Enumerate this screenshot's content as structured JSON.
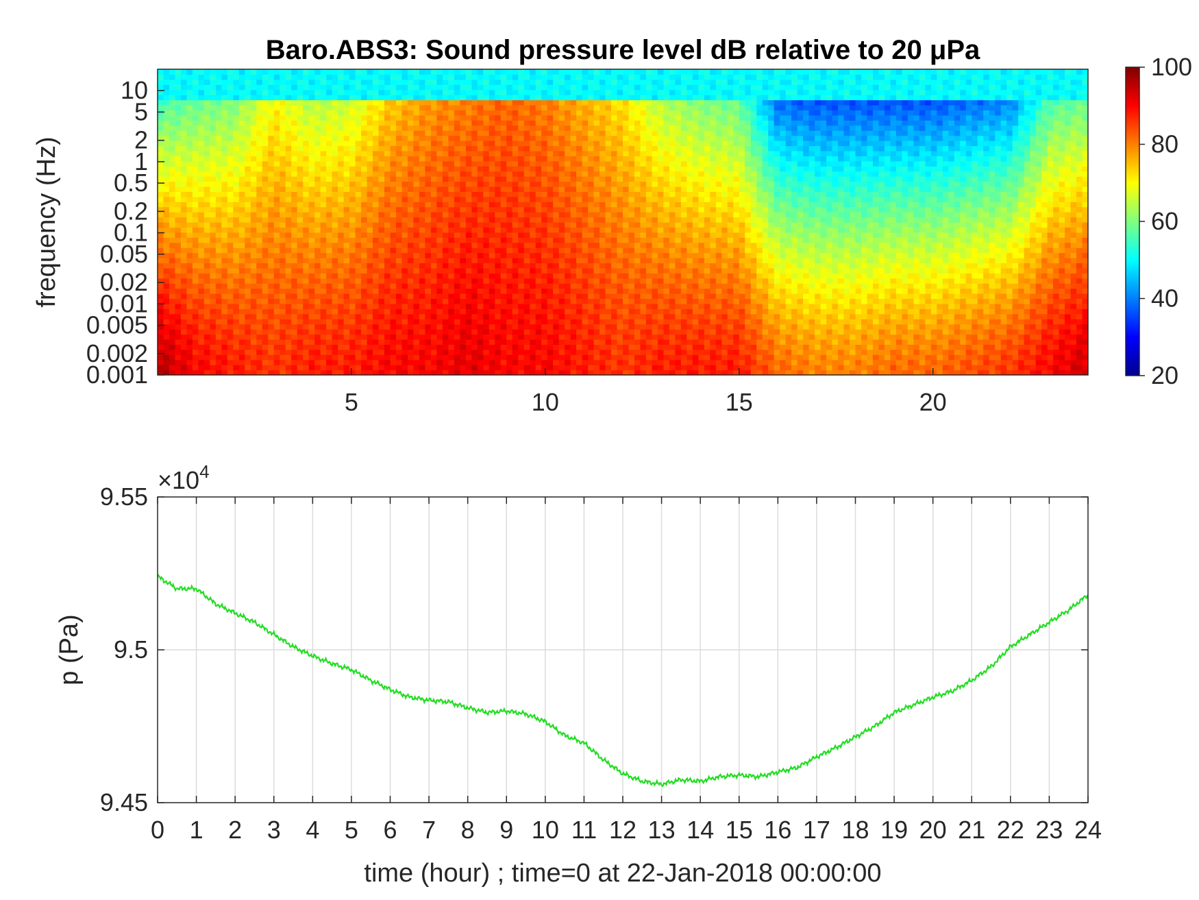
{
  "chart_data": [
    {
      "type": "heatmap",
      "title": "Baro.ABS3: Sound pressure level dB relative to 20 μPa",
      "ylabel": "frequency (Hz)",
      "xlabel": "",
      "xlim": [
        0,
        24
      ],
      "ylim": [
        0.001,
        20
      ],
      "yscale": "log",
      "xticks": [
        5,
        10,
        15,
        20
      ],
      "yticks": [
        0.001,
        0.002,
        0.005,
        0.01,
        0.02,
        0.05,
        0.1,
        0.2,
        0.5,
        1,
        2,
        5,
        10
      ],
      "ytick_labels": [
        "0.001",
        "0.002",
        "0.005",
        "0.01",
        "0.02",
        "0.05",
        "0.1",
        "0.2",
        "0.5",
        "1",
        "2",
        "5",
        "10"
      ],
      "colormap": "jet",
      "clim": [
        20,
        100
      ],
      "colorbar_ticks": [
        20,
        40,
        60,
        80,
        100
      ],
      "grid": false,
      "profile_times": [
        0,
        1,
        2,
        3,
        4,
        5,
        6,
        7,
        8,
        9,
        10,
        11,
        12,
        13,
        14,
        15,
        16,
        17,
        18,
        19,
        20,
        21,
        22,
        23,
        24
      ],
      "upper_band_db": [
        55,
        58,
        60,
        70,
        64,
        66,
        74,
        78,
        80,
        82,
        80,
        76,
        72,
        64,
        60,
        58,
        38,
        36,
        36,
        36,
        36,
        38,
        40,
        56,
        58
      ],
      "lower_band_db": [
        96,
        90,
        88,
        86,
        88,
        88,
        90,
        90,
        92,
        90,
        90,
        88,
        86,
        88,
        88,
        88,
        82,
        80,
        80,
        82,
        82,
        84,
        86,
        90,
        94
      ]
    },
    {
      "type": "line",
      "title": "",
      "xlabel": "time (hour) ; time=0 at 22-Jan-2018 00:00:00",
      "ylabel": "p (Pa)",
      "exponent_label": "×10",
      "exponent_power": "4",
      "xlim": [
        0,
        24
      ],
      "ylim": [
        94500,
        95500
      ],
      "xticks": [
        0,
        1,
        2,
        3,
        4,
        5,
        6,
        7,
        8,
        9,
        10,
        11,
        12,
        13,
        14,
        15,
        16,
        17,
        18,
        19,
        20,
        21,
        22,
        23,
        24
      ],
      "yticks": [
        94500,
        95000,
        95500
      ],
      "ytick_labels": [
        "9.45",
        "9.5",
        "9.55"
      ],
      "grid": true,
      "series": [
        {
          "color": "#22dd22",
          "x": [
            0,
            0.5,
            1,
            1.5,
            2,
            2.5,
            3,
            3.5,
            4,
            4.5,
            5,
            5.5,
            6,
            6.5,
            7,
            7.5,
            8,
            8.5,
            9,
            9.5,
            10,
            10.5,
            11,
            11.5,
            12,
            12.5,
            13,
            13.5,
            14,
            14.5,
            15,
            15.5,
            16,
            16.5,
            17,
            17.5,
            18,
            18.5,
            19,
            19.5,
            20,
            20.5,
            21,
            21.5,
            22,
            22.5,
            23,
            23.5,
            24
          ],
          "y": [
            95240,
            95200,
            95200,
            95150,
            95120,
            95090,
            95050,
            95010,
            94980,
            94955,
            94935,
            94900,
            94870,
            94845,
            94835,
            94830,
            94810,
            94795,
            94800,
            94790,
            94765,
            94720,
            94695,
            94640,
            94595,
            94570,
            94560,
            94575,
            94570,
            94585,
            94590,
            94585,
            94600,
            94615,
            94650,
            94680,
            94715,
            94750,
            94795,
            94820,
            94845,
            94865,
            94900,
            94945,
            95010,
            95050,
            95090,
            95130,
            95180
          ]
        }
      ]
    }
  ]
}
